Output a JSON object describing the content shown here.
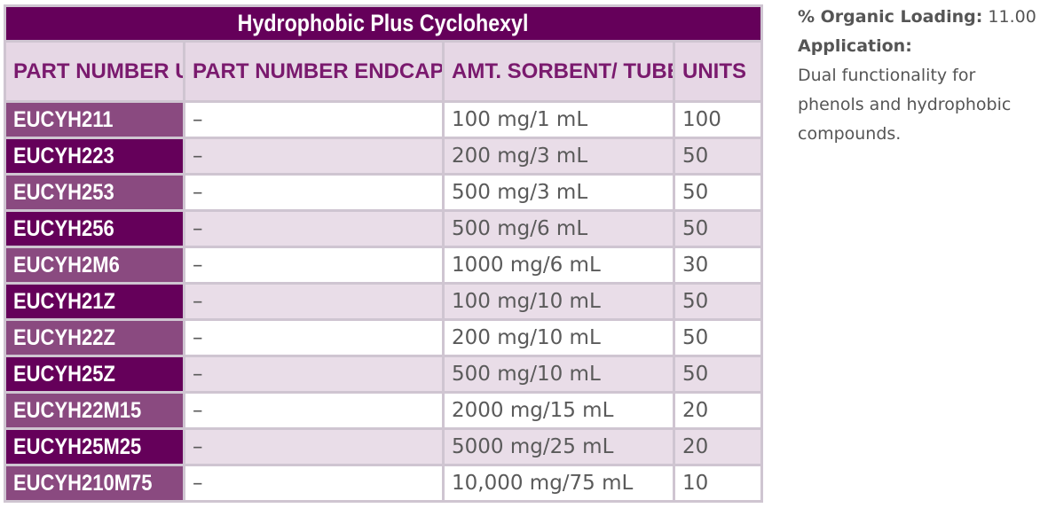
{
  "table": {
    "title": "Hydrophobic Plus Cyclohexyl",
    "headers": [
      "PART NUMBER UNENDCAPPED",
      "PART NUMBER ENDCAPPED",
      "AMT. SORBENT/ TUBE VOL.",
      "UNITS"
    ],
    "rows": [
      {
        "unendcapped": "EUCYH211",
        "endcapped": "–",
        "amount": "100 mg/1 mL",
        "units": "100"
      },
      {
        "unendcapped": "EUCYH223",
        "endcapped": "–",
        "amount": "200 mg/3 mL",
        "units": "50"
      },
      {
        "unendcapped": "EUCYH253",
        "endcapped": "–",
        "amount": "500 mg/3 mL",
        "units": "50"
      },
      {
        "unendcapped": "EUCYH256",
        "endcapped": "–",
        "amount": "500 mg/6 mL",
        "units": "50"
      },
      {
        "unendcapped": "EUCYH2M6",
        "endcapped": "–",
        "amount": "1000 mg/6 mL",
        "units": "30"
      },
      {
        "unendcapped": "EUCYH21Z",
        "endcapped": "–",
        "amount": "100 mg/10 mL",
        "units": "50"
      },
      {
        "unendcapped": "EUCYH22Z",
        "endcapped": "–",
        "amount": "200 mg/10 mL",
        "units": "50"
      },
      {
        "unendcapped": "EUCYH25Z",
        "endcapped": "–",
        "amount": "500 mg/10 mL",
        "units": "50"
      },
      {
        "unendcapped": "EUCYH22M15",
        "endcapped": "–",
        "amount": "2000 mg/15 mL",
        "units": "20"
      },
      {
        "unendcapped": "EUCYH25M25",
        "endcapped": "–",
        "amount": "5000 mg/25 mL",
        "units": "20"
      },
      {
        "unendcapped": "EUCYH210M75",
        "endcapped": "–",
        "amount": "10,000 mg/75 mL",
        "units": "10"
      }
    ]
  },
  "side": {
    "organic_loading_label": "% Organic Loading:",
    "organic_loading_value": "11.00",
    "application_label": "Application:",
    "application_lines": [
      "Dual functionality for",
      "phenols and hydrophobic",
      "compounds."
    ]
  },
  "colors": {
    "brand_purple": "#65005a",
    "light_purple": "#8a4a80",
    "header_bg": "#e6d7e5",
    "stripe_bg": "#e9dde8"
  }
}
